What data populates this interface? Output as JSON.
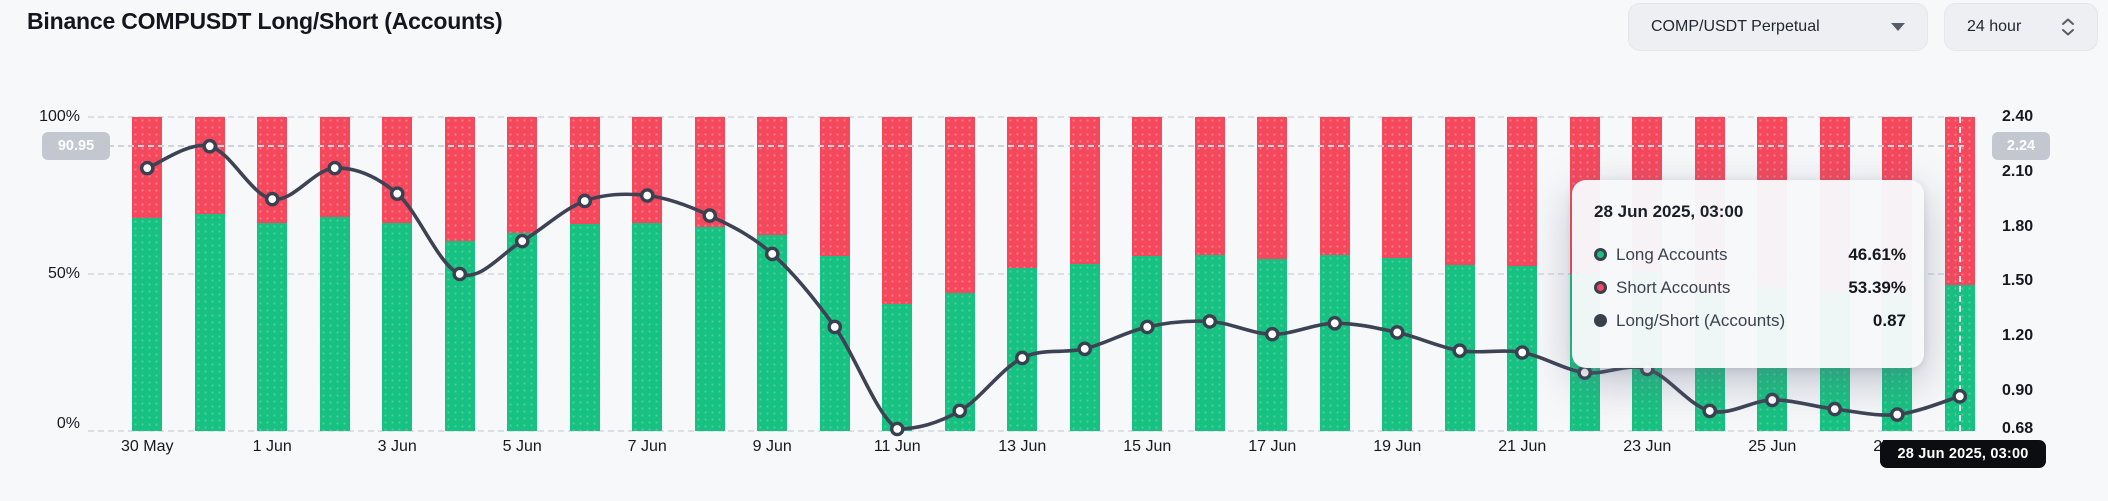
{
  "header": {
    "title": "Binance COMPUSDT Long/Short (Accounts)"
  },
  "controls": {
    "pair_selector": "COMP/USDT Perpetual",
    "interval_selector": "24 hour"
  },
  "colors": {
    "long_green": "#17c181",
    "short_red": "#f5485d",
    "ratio_line": "#3d4354",
    "badge_gray": "#c3c8d0",
    "background": "#f7f8fa"
  },
  "tooltip": {
    "title": "28 Jun 2025, 03:00",
    "rows": [
      {
        "label": "Long Accounts",
        "value": "46.61%"
      },
      {
        "label": "Short Accounts",
        "value": "53.39%"
      },
      {
        "label": "Long/Short (Accounts)",
        "value": "0.87"
      }
    ]
  },
  "x_hover_label": "28 Jun 2025, 03:00",
  "chart_data": {
    "type": "bar",
    "subtype": "stacked-bar-with-line",
    "title": "Binance COMPUSDT Long/Short (Accounts)",
    "categories": [
      "30 May",
      "31 May",
      "1 Jun",
      "2 Jun",
      "3 Jun",
      "4 Jun",
      "5 Jun",
      "6 Jun",
      "7 Jun",
      "8 Jun",
      "9 Jun",
      "10 Jun",
      "11 Jun",
      "12 Jun",
      "13 Jun",
      "14 Jun",
      "15 Jun",
      "16 Jun",
      "17 Jun",
      "18 Jun",
      "19 Jun",
      "20 Jun",
      "21 Jun",
      "22 Jun",
      "23 Jun",
      "24 Jun",
      "25 Jun",
      "26 Jun",
      "27 Jun",
      "28 Jun"
    ],
    "series": [
      {
        "name": "Long Accounts",
        "type": "bar",
        "stack": true,
        "unit": "%",
        "color": "#17c181",
        "values": [
          67.9,
          69.1,
          66.1,
          68.0,
          66.4,
          60.6,
          63.2,
          66.0,
          66.3,
          65.0,
          62.3,
          55.6,
          40.5,
          44.1,
          51.9,
          53.1,
          55.6,
          56.1,
          54.8,
          55.9,
          55.0,
          52.8,
          52.6,
          50.0,
          50.5,
          44.1,
          45.9,
          44.4,
          43.5,
          46.61
        ]
      },
      {
        "name": "Short Accounts",
        "type": "bar",
        "stack": true,
        "unit": "%",
        "color": "#f5485d",
        "values": [
          32.1,
          30.9,
          33.9,
          32.0,
          33.6,
          39.4,
          36.8,
          34.0,
          33.7,
          35.0,
          37.7,
          44.4,
          59.5,
          55.9,
          48.1,
          46.9,
          44.4,
          43.9,
          45.2,
          44.1,
          45.0,
          47.2,
          47.4,
          50.0,
          49.5,
          55.9,
          54.1,
          55.6,
          56.5,
          53.39
        ]
      },
      {
        "name": "Long/Short (Accounts)",
        "type": "line",
        "axis": "right",
        "color": "#3d4354",
        "values": [
          2.12,
          2.24,
          1.95,
          2.12,
          1.98,
          1.54,
          1.72,
          1.94,
          1.97,
          1.86,
          1.65,
          1.25,
          0.68,
          0.79,
          1.08,
          1.13,
          1.25,
          1.28,
          1.21,
          1.27,
          1.22,
          1.12,
          1.11,
          1.0,
          1.02,
          0.79,
          0.85,
          0.8,
          0.77,
          0.87
        ]
      }
    ],
    "left_axis": {
      "ticks": [
        "100%",
        "50%",
        "0%"
      ],
      "range": [
        0,
        100
      ],
      "current_badge": "90.95"
    },
    "right_axis": {
      "ticks": [
        "2.40",
        "2.10",
        "1.80",
        "1.50",
        "1.20",
        "0.90",
        "0.68"
      ],
      "range": [
        0.68,
        2.4
      ],
      "current_badge": "2.24"
    },
    "x_axis": {
      "tick_labels": [
        "30 May",
        "1 Jun",
        "3 Jun",
        "5 Jun",
        "7 Jun",
        "9 Jun",
        "11 Jun",
        "13 Jun",
        "15 Jun",
        "17 Jun",
        "19 Jun",
        "21 Jun",
        "23 Jun",
        "25 Jun",
        "27 Jun"
      ]
    },
    "current_value_line": {
      "ratio": 2.24,
      "left_badge": "90.95",
      "right_badge": "2.24"
    },
    "hover": {
      "index": 29,
      "category": "28 Jun",
      "time_label": "28 Jun 2025, 03:00",
      "long": "46.61%",
      "short": "53.39%",
      "ratio": "0.87"
    },
    "grid": "dashed horizontal at 0%, 50%, 100%",
    "legend_position": "tooltip-only"
  }
}
